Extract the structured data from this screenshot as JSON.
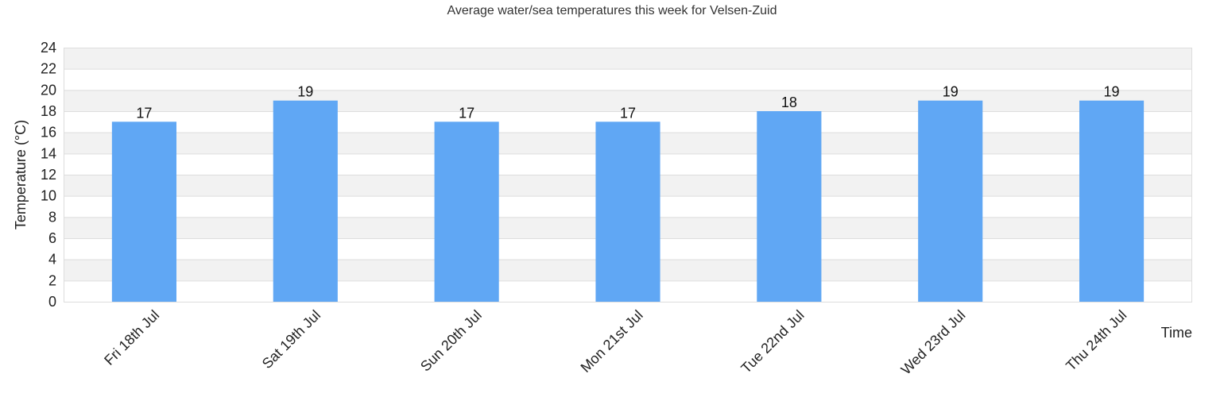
{
  "chart_data": {
    "type": "bar",
    "title": "Average water/sea temperatures this week for Velsen-Zuid",
    "xlabel": "Time",
    "ylabel": "Temperature (°C)",
    "categories": [
      "Fri 18th Jul",
      "Sat 19th Jul",
      "Sun 20th Jul",
      "Mon 21st Jul",
      "Tue 22nd Jul",
      "Wed 23rd Jul",
      "Thu 24th Jul"
    ],
    "values": [
      17,
      19,
      17,
      17,
      18,
      19,
      19
    ],
    "ylim": [
      0,
      24
    ],
    "yticks": [
      0,
      2,
      4,
      6,
      8,
      10,
      12,
      14,
      16,
      18,
      20,
      22,
      24
    ],
    "grid": true,
    "bar_color": "#60a7f4",
    "band_color": "#f2f2f2",
    "gridline_color": "#dddddd"
  }
}
